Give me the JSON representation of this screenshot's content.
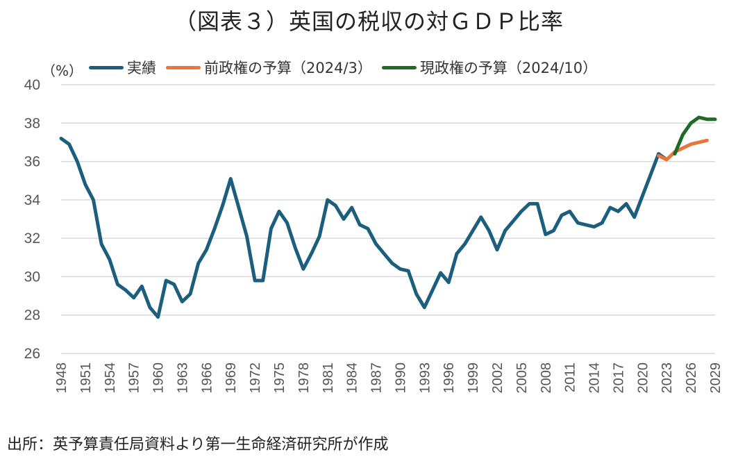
{
  "title": "（図表３）英国の税収の対ＧＤＰ比率",
  "source_note": "出所：英予算責任局資料より第一生命経済研究所が作成",
  "colors": {
    "actual": "#1b5e7e",
    "prev_budget": "#e8763a",
    "current_budget": "#1e6b24",
    "grid": "#d9d9d9"
  },
  "chart_data": {
    "type": "line",
    "ylabel": "（%）",
    "xlabel": "",
    "ylim": [
      26,
      40
    ],
    "y_ticks": [
      26,
      28,
      30,
      32,
      34,
      36,
      38,
      40
    ],
    "xlim": [
      1948,
      2029
    ],
    "x_ticks": [
      "1948",
      "1951",
      "1954",
      "1957",
      "1960",
      "1963",
      "1966",
      "1969",
      "1972",
      "1975",
      "1978",
      "1981",
      "1984",
      "1987",
      "1990",
      "1993",
      "1996",
      "1999",
      "2002",
      "2005",
      "2008",
      "2011",
      "2014",
      "2017",
      "2020",
      "2023",
      "2026",
      "2029"
    ],
    "grid": true,
    "legend_position": "top",
    "series": [
      {
        "name": "実績",
        "color": "#1b5e7e",
        "x": [
          1948,
          1949,
          1950,
          1951,
          1952,
          1953,
          1954,
          1955,
          1956,
          1957,
          1958,
          1959,
          1960,
          1961,
          1962,
          1963,
          1964,
          1965,
          1966,
          1967,
          1968,
          1969,
          1970,
          1971,
          1972,
          1973,
          1974,
          1975,
          1976,
          1977,
          1978,
          1979,
          1980,
          1981,
          1982,
          1983,
          1984,
          1985,
          1986,
          1987,
          1988,
          1989,
          1990,
          1991,
          1992,
          1993,
          1994,
          1995,
          1996,
          1997,
          1998,
          1999,
          2000,
          2001,
          2002,
          2003,
          2004,
          2005,
          2006,
          2007,
          2008,
          2009,
          2010,
          2011,
          2012,
          2013,
          2014,
          2015,
          2016,
          2017,
          2018,
          2019,
          2020,
          2021,
          2022,
          2023
        ],
        "values": [
          37.2,
          36.9,
          36.0,
          34.8,
          34.0,
          31.7,
          30.9,
          29.6,
          29.3,
          28.9,
          29.5,
          28.4,
          27.9,
          29.8,
          29.6,
          28.7,
          29.1,
          30.7,
          31.4,
          32.5,
          33.7,
          35.1,
          33.6,
          32.1,
          29.8,
          29.8,
          32.5,
          33.4,
          32.8,
          31.5,
          30.4,
          31.2,
          32.1,
          34.0,
          33.7,
          33.0,
          33.6,
          32.7,
          32.5,
          31.7,
          31.2,
          30.7,
          30.4,
          30.3,
          29.1,
          28.4,
          29.3,
          30.2,
          29.7,
          31.2,
          31.7,
          32.4,
          33.1,
          32.4,
          31.4,
          32.4,
          32.9,
          33.4,
          33.8,
          33.8,
          32.2,
          32.4,
          33.2,
          33.4,
          32.8,
          32.7,
          32.6,
          32.8,
          33.6,
          33.4,
          33.8,
          33.1,
          34.2,
          35.3,
          36.4,
          36.1
        ]
      },
      {
        "name": "前政権の予算（2024/3）",
        "color": "#e8763a",
        "x": [
          2022,
          2023,
          2024,
          2025,
          2026,
          2027,
          2028
        ],
        "values": [
          36.3,
          36.1,
          36.5,
          36.7,
          36.9,
          37.0,
          37.1
        ]
      },
      {
        "name": "現政権の予算（2024/10）",
        "color": "#1e6b24",
        "x": [
          2024,
          2025,
          2026,
          2027,
          2028,
          2029
        ],
        "values": [
          36.4,
          37.4,
          38.0,
          38.3,
          38.2,
          38.2
        ]
      }
    ]
  }
}
